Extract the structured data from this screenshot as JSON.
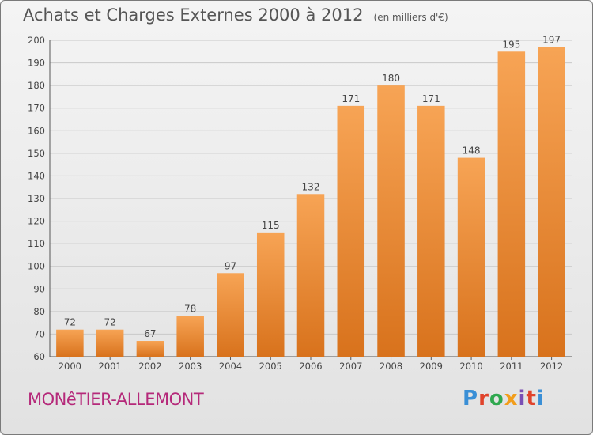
{
  "header": {
    "title": "Achats et Charges Externes 2000 à 2012",
    "subtitle": "(en milliers d'€)"
  },
  "footer": {
    "commune": "MONêTIER-ALLEMONT",
    "logo_text": "Proxiti",
    "logo_colors": [
      "#3a8fd6",
      "#e0432b",
      "#2fa84f",
      "#f29d1b",
      "#7a4fb5",
      "#e0432b",
      "#3a8fd6"
    ]
  },
  "colors": {
    "bar_top": "#f7a455",
    "bar_bottom": "#d8721c",
    "grid": "#c8c8c8",
    "axis": "#555555",
    "text": "#444444"
  },
  "chart_data": {
    "type": "bar",
    "categories": [
      "2000",
      "2001",
      "2002",
      "2003",
      "2004",
      "2005",
      "2006",
      "2007",
      "2008",
      "2009",
      "2010",
      "2011",
      "2012"
    ],
    "values": [
      72,
      72,
      67,
      78,
      97,
      115,
      132,
      171,
      180,
      171,
      148,
      195,
      197
    ],
    "title": "Achats et Charges Externes 2000 à 2012",
    "xlabel": "",
    "ylabel": "",
    "ylim": [
      60,
      200
    ],
    "yticks": [
      60,
      70,
      80,
      90,
      100,
      110,
      120,
      130,
      140,
      150,
      160,
      170,
      180,
      190,
      200
    ],
    "grid": true,
    "data_labels": true
  }
}
